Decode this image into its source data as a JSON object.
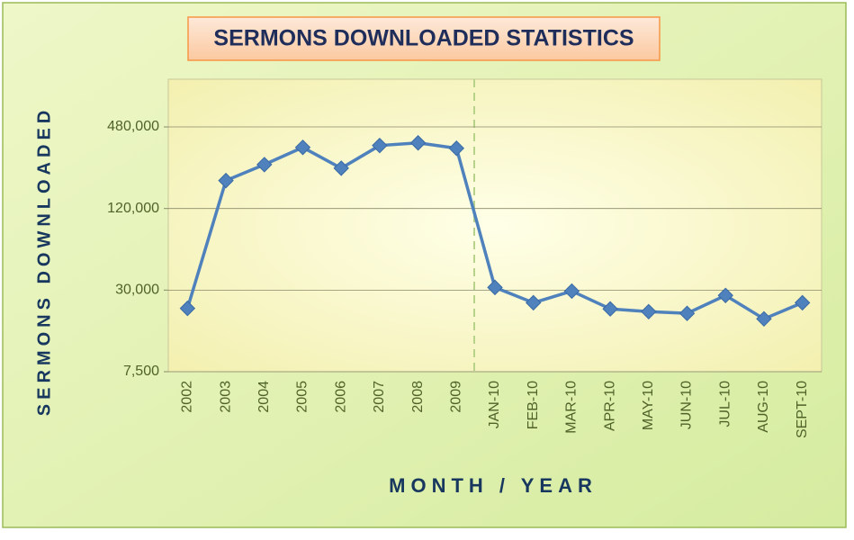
{
  "chart_data": {
    "type": "line",
    "title": "SERMONS DOWNLOADED STATISTICS",
    "x_label": "MONTH / YEAR",
    "y_label": "SERMONS DOWNLOADED",
    "categories": [
      "2002",
      "2003",
      "2004",
      "2005",
      "2006",
      "2007",
      "2008",
      "2009",
      "JAN-10",
      "FEB-10",
      "MAR-10",
      "APR-10",
      "MAY-10",
      "JUN-10",
      "JUL-10",
      "AUG-10",
      "SEPT-10"
    ],
    "series": [
      {
        "name": "Sermons Downloaded",
        "color": "#4f81bd",
        "values": [
          22000,
          193000,
          253000,
          339000,
          238000,
          350000,
          366000,
          334000,
          31400,
          24200,
          29500,
          21800,
          20800,
          20200,
          27400,
          18400,
          24200
        ]
      }
    ],
    "ylim": [
      7500,
      1080000
    ],
    "yticks": [
      {
        "value": 7500,
        "label": "7,500"
      },
      {
        "value": 30000,
        "label": "30,000"
      },
      {
        "value": 120000,
        "label": "120,000"
      },
      {
        "value": 480000,
        "label": "480,000"
      }
    ],
    "log_scale": true,
    "grid": true
  }
}
